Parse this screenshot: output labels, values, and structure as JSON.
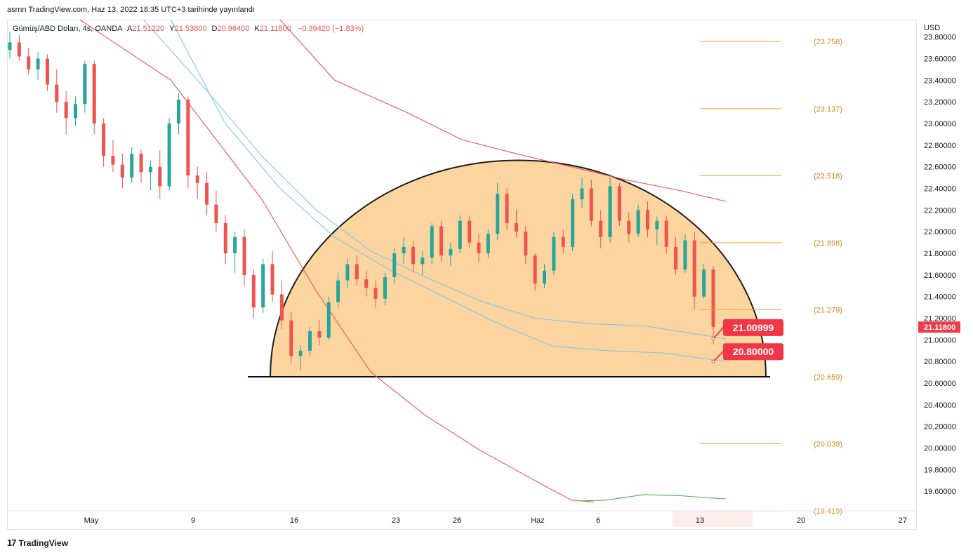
{
  "header": {
    "publish_line": "asrnn TradingView.com, Haz 13, 2022 18:35 UTC+3 tarihinde yayınlandı"
  },
  "legend": {
    "symbol": "Gümüş/ABD Doları, 4s, OANDA",
    "open_label": "A",
    "open": "21.51220",
    "high_label": "Y",
    "high": "21.53800",
    "low_label": "D",
    "low": "20.96400",
    "close_label": "K",
    "close": "21.11800",
    "change": "−0.39420 (−1.83%)"
  },
  "currency": "USD",
  "footer": {
    "logo": "17",
    "brand": "TradingView"
  },
  "colors": {
    "up": "#26a69a",
    "down": "#ef5350",
    "fib": "#f5a623",
    "dome_fill": "#fcd29a",
    "ma_red": "#ef5350",
    "ma_blue": "#7ec8e3",
    "ma_green": "#4caf50"
  },
  "chart_data": {
    "type": "candlestick",
    "instrument": "Gümüş/ABD Doları",
    "timeframe": "4s",
    "y_ticks": [
      "23.80000",
      "23.60000",
      "23.40000",
      "23.20000",
      "23.00000",
      "22.80000",
      "22.60000",
      "22.40000",
      "22.20000",
      "22.00000",
      "21.80000",
      "21.60000",
      "21.40000",
      "21.20000",
      "21.00000",
      "20.80000",
      "20.60000",
      "20.40000",
      "20.20000",
      "20.00000",
      "19.80000",
      "19.60000"
    ],
    "ylim": [
      19.42,
      23.96
    ],
    "x_ticks": [
      "May",
      "9",
      "16",
      "23",
      "26",
      "Haz",
      "6",
      "13",
      "20",
      "27"
    ],
    "last_price": "21.11800",
    "fib_levels": [
      "(23.758)",
      "(23.137)",
      "(22.518)",
      "(21.898)",
      "(21.279)",
      "(20.659)",
      "(20.039)",
      "(19.419)"
    ],
    "fib_values": [
      23.758,
      23.137,
      22.518,
      21.898,
      21.279,
      20.659,
      20.039,
      19.419
    ],
    "callouts": [
      {
        "label": "21.00999",
        "value": 21.00999
      },
      {
        "label": "20.80000",
        "value": 20.8
      }
    ],
    "rounding_top": {
      "base_value": 20.659,
      "peak_value": 22.66
    },
    "candles_ohlc_approx": [
      [
        23.68,
        23.85,
        23.6,
        23.75
      ],
      [
        23.75,
        23.82,
        23.58,
        23.62
      ],
      [
        23.62,
        23.7,
        23.45,
        23.5
      ],
      [
        23.5,
        23.66,
        23.4,
        23.6
      ],
      [
        23.6,
        23.64,
        23.3,
        23.36
      ],
      [
        23.36,
        23.5,
        23.1,
        23.2
      ],
      [
        23.2,
        23.3,
        22.9,
        23.05
      ],
      [
        23.05,
        23.25,
        22.98,
        23.18
      ],
      [
        23.18,
        23.58,
        23.1,
        23.55
      ],
      [
        23.55,
        23.58,
        22.9,
        23.0
      ],
      [
        23.0,
        23.05,
        22.6,
        22.7
      ],
      [
        22.7,
        22.85,
        22.55,
        22.62
      ],
      [
        22.62,
        22.72,
        22.4,
        22.5
      ],
      [
        22.5,
        22.78,
        22.45,
        22.72
      ],
      [
        22.72,
        22.76,
        22.45,
        22.55
      ],
      [
        22.55,
        22.66,
        22.38,
        22.6
      ],
      [
        22.6,
        22.75,
        22.3,
        22.42
      ],
      [
        22.42,
        23.05,
        22.38,
        23.0
      ],
      [
        23.0,
        23.28,
        22.9,
        23.22
      ],
      [
        23.22,
        23.25,
        22.4,
        22.52
      ],
      [
        22.52,
        22.6,
        22.3,
        22.45
      ],
      [
        22.45,
        22.55,
        22.15,
        22.25
      ],
      [
        22.25,
        22.38,
        22.0,
        22.08
      ],
      [
        22.08,
        22.15,
        21.7,
        21.8
      ],
      [
        21.8,
        22.0,
        21.62,
        21.95
      ],
      [
        21.95,
        22.02,
        21.5,
        21.6
      ],
      [
        21.6,
        21.65,
        21.2,
        21.3
      ],
      [
        21.3,
        21.75,
        21.25,
        21.7
      ],
      [
        21.7,
        21.82,
        21.35,
        21.42
      ],
      [
        21.42,
        21.55,
        21.1,
        21.18
      ],
      [
        21.18,
        21.26,
        20.78,
        20.85
      ],
      [
        20.85,
        20.95,
        20.72,
        20.9
      ],
      [
        20.9,
        21.12,
        20.85,
        21.08
      ],
      [
        21.08,
        21.18,
        20.95,
        21.02
      ],
      [
        21.02,
        21.4,
        21.0,
        21.35
      ],
      [
        21.35,
        21.62,
        21.3,
        21.55
      ],
      [
        21.55,
        21.75,
        21.48,
        21.7
      ],
      [
        21.7,
        21.78,
        21.5,
        21.56
      ],
      [
        21.56,
        21.64,
        21.4,
        21.48
      ],
      [
        21.48,
        21.55,
        21.3,
        21.38
      ],
      [
        21.38,
        21.62,
        21.32,
        21.58
      ],
      [
        21.58,
        21.85,
        21.52,
        21.8
      ],
      [
        21.8,
        21.95,
        21.7,
        21.86
      ],
      [
        21.86,
        21.92,
        21.62,
        21.7
      ],
      [
        21.7,
        21.82,
        21.6,
        21.76
      ],
      [
        21.76,
        22.08,
        21.7,
        22.05
      ],
      [
        22.05,
        22.1,
        21.72,
        21.78
      ],
      [
        21.78,
        21.9,
        21.68,
        21.84
      ],
      [
        21.84,
        22.15,
        21.8,
        22.1
      ],
      [
        22.1,
        22.15,
        21.85,
        21.9
      ],
      [
        21.9,
        21.98,
        21.72,
        21.8
      ],
      [
        21.8,
        22.02,
        21.76,
        21.98
      ],
      [
        21.98,
        22.45,
        21.92,
        22.35
      ],
      [
        22.35,
        22.4,
        22.02,
        22.08
      ],
      [
        22.08,
        22.2,
        21.95,
        22.0
      ],
      [
        22.0,
        22.05,
        21.7,
        21.78
      ],
      [
        21.78,
        21.8,
        21.45,
        21.52
      ],
      [
        21.52,
        21.7,
        21.48,
        21.64
      ],
      [
        21.64,
        22.0,
        21.6,
        21.95
      ],
      [
        21.95,
        22.02,
        21.8,
        21.86
      ],
      [
        21.86,
        22.35,
        21.82,
        22.3
      ],
      [
        22.3,
        22.5,
        22.22,
        22.4
      ],
      [
        22.4,
        22.48,
        22.05,
        22.1
      ],
      [
        22.1,
        22.2,
        21.85,
        21.95
      ],
      [
        21.95,
        22.5,
        21.9,
        22.42
      ],
      [
        22.42,
        22.45,
        22.05,
        22.1
      ],
      [
        22.1,
        22.18,
        21.9,
        21.98
      ],
      [
        21.98,
        22.25,
        21.95,
        22.2
      ],
      [
        22.2,
        22.28,
        21.95,
        22.02
      ],
      [
        22.02,
        22.14,
        21.88,
        22.1
      ],
      [
        22.1,
        22.15,
        21.8,
        21.86
      ],
      [
        21.86,
        21.95,
        21.6,
        21.65
      ],
      [
        21.65,
        21.98,
        21.62,
        21.92
      ],
      [
        21.92,
        22.0,
        21.28,
        21.4
      ],
      [
        21.4,
        21.7,
        21.38,
        21.65
      ],
      [
        21.65,
        21.68,
        20.96,
        21.12
      ]
    ],
    "moving_averages": [
      {
        "color": "red",
        "points": [
          [
            0.08,
            23.96
          ],
          [
            0.18,
            23.4
          ],
          [
            0.28,
            22.3
          ],
          [
            0.34,
            21.45
          ],
          [
            0.4,
            20.7
          ],
          [
            0.46,
            20.3
          ],
          [
            0.52,
            19.98
          ],
          [
            0.58,
            19.7
          ],
          [
            0.62,
            19.52
          ],
          [
            0.645,
            19.5
          ]
        ]
      },
      {
        "color": "blue",
        "points": [
          [
            0.15,
            23.96
          ],
          [
            0.22,
            23.3
          ],
          [
            0.28,
            22.7
          ],
          [
            0.34,
            22.2
          ],
          [
            0.4,
            21.82
          ],
          [
            0.46,
            21.58
          ],
          [
            0.52,
            21.36
          ],
          [
            0.58,
            21.2
          ],
          [
            0.64,
            21.15
          ],
          [
            0.7,
            21.13
          ],
          [
            0.79,
            21.01
          ]
        ]
      },
      {
        "color": "blue",
        "points": [
          [
            0.18,
            23.96
          ],
          [
            0.24,
            23.0
          ],
          [
            0.3,
            22.4
          ],
          [
            0.36,
            21.95
          ],
          [
            0.42,
            21.65
          ],
          [
            0.48,
            21.4
          ],
          [
            0.54,
            21.15
          ],
          [
            0.6,
            20.94
          ],
          [
            0.66,
            20.9
          ],
          [
            0.72,
            20.88
          ],
          [
            0.79,
            20.8
          ]
        ]
      },
      {
        "color": "red",
        "points": [
          [
            0.3,
            23.96
          ],
          [
            0.36,
            23.4
          ],
          [
            0.44,
            23.1
          ],
          [
            0.5,
            22.85
          ],
          [
            0.56,
            22.72
          ],
          [
            0.62,
            22.6
          ],
          [
            0.68,
            22.48
          ],
          [
            0.74,
            22.38
          ],
          [
            0.79,
            22.28
          ]
        ]
      },
      {
        "color": "green",
        "points": [
          [
            0.63,
            19.51
          ],
          [
            0.66,
            19.52
          ],
          [
            0.7,
            19.57
          ],
          [
            0.74,
            19.56
          ],
          [
            0.77,
            19.54
          ],
          [
            0.79,
            19.53
          ]
        ]
      }
    ]
  }
}
